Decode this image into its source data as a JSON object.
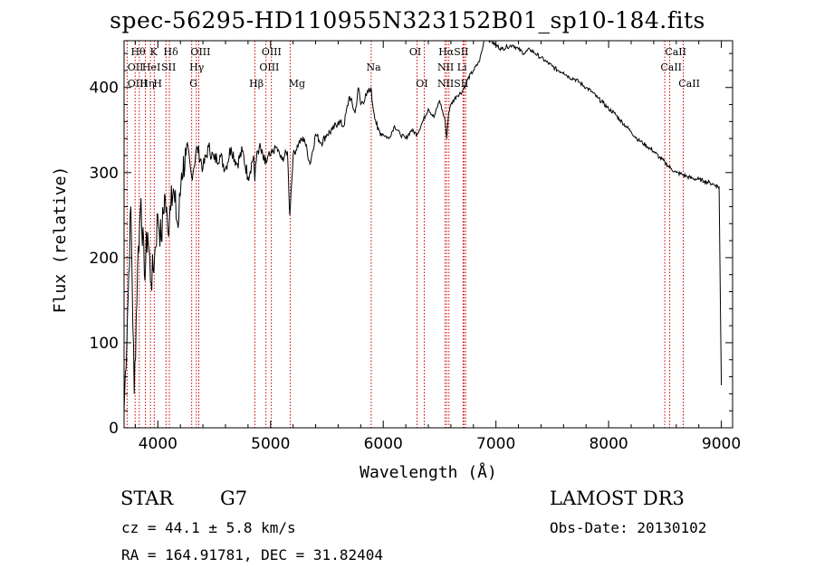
{
  "chart_data": {
    "type": "line",
    "title": "spec-56295-HD110955N323152B01_sp10-184.fits",
    "xlabel": "Wavelength (Å)",
    "ylabel": "Flux (relative)",
    "xlim": [
      3700,
      9100
    ],
    "ylim": [
      0,
      455
    ],
    "xticks": [
      4000,
      5000,
      6000,
      7000,
      8000,
      9000
    ],
    "yticks": [
      0,
      100,
      200,
      300,
      400
    ],
    "series": [
      {
        "name": "flux",
        "x": [
          3700,
          3730,
          3760,
          3790,
          3820,
          3850,
          3880,
          3910,
          3940,
          3970,
          4000,
          4030,
          4060,
          4090,
          4120,
          4150,
          4180,
          4210,
          4250,
          4300,
          4350,
          4400,
          4450,
          4500,
          4550,
          4600,
          4650,
          4700,
          4750,
          4800,
          4850,
          4860,
          4880,
          4900,
          4950,
          5000,
          5050,
          5100,
          5150,
          5170,
          5200,
          5250,
          5300,
          5350,
          5400,
          5450,
          5500,
          5550,
          5600,
          5650,
          5700,
          5750,
          5780,
          5800,
          5850,
          5890,
          5900,
          5950,
          6000,
          6050,
          6100,
          6150,
          6200,
          6250,
          6300,
          6350,
          6400,
          6450,
          6500,
          6550,
          6563,
          6580,
          6600,
          6650,
          6700,
          6750,
          6800,
          6850,
          6880,
          6900,
          6950,
          7000,
          7050,
          7100,
          7150,
          7200,
          7250,
          7300,
          7350,
          7400,
          7450,
          7500,
          7550,
          7600,
          7650,
          7700,
          7750,
          7800,
          7850,
          7900,
          7950,
          8000,
          8050,
          8100,
          8150,
          8200,
          8250,
          8300,
          8350,
          8400,
          8450,
          8500,
          8550,
          8600,
          8650,
          8700,
          8750,
          8800,
          8850,
          8900,
          8950,
          8980,
          9000
        ],
        "y": [
          20,
          130,
          260,
          40,
          190,
          270,
          180,
          230,
          170,
          200,
          250,
          220,
          275,
          230,
          285,
          265,
          235,
          300,
          320,
          295,
          330,
          305,
          330,
          315,
          320,
          305,
          330,
          310,
          325,
          295,
          320,
          290,
          325,
          330,
          310,
          320,
          330,
          315,
          325,
          250,
          320,
          335,
          340,
          310,
          345,
          335,
          345,
          350,
          360,
          355,
          390,
          370,
          400,
          380,
          390,
          400,
          385,
          350,
          345,
          340,
          355,
          345,
          340,
          350,
          345,
          360,
          375,
          365,
          385,
          360,
          340,
          370,
          380,
          390,
          395,
          410,
          420,
          430,
          445,
          460,
          455,
          450,
          445,
          448,
          450,
          445,
          440,
          445,
          440,
          435,
          430,
          425,
          420,
          418,
          412,
          410,
          405,
          400,
          395,
          388,
          382,
          375,
          370,
          362,
          355,
          348,
          340,
          335,
          330,
          325,
          318,
          312,
          305,
          300,
          298,
          295,
          293,
          292,
          290,
          288,
          285,
          283,
          50
        ]
      }
    ],
    "lines": [
      {
        "wl": 3727,
        "top": "OII"
      },
      {
        "wl": 3798,
        "top": "Hθ"
      },
      {
        "wl": 3835,
        "top": "Hη"
      },
      {
        "wl": 3889,
        "top": "HeI"
      },
      {
        "wl": 3934,
        "top": "K"
      },
      {
        "wl": 3968,
        "top": "H"
      },
      {
        "wl": 4072,
        "top": "SII"
      },
      {
        "wl": 4102,
        "top": "Hδ"
      },
      {
        "wl": 4300,
        "top": "G"
      },
      {
        "wl": 4341,
        "top": "Hγ"
      },
      {
        "wl": 4363,
        "top": "OIII"
      },
      {
        "wl": 4861,
        "top": "Hβ"
      },
      {
        "wl": 4959,
        "top": "OIII"
      },
      {
        "wl": 5007,
        "top": "OIII"
      },
      {
        "wl": 5175,
        "top": "Mg"
      },
      {
        "wl": 5893,
        "top": "Na"
      },
      {
        "wl": 6300,
        "top": "OI"
      },
      {
        "wl": 6364,
        "top": "OI"
      },
      {
        "wl": 6548,
        "top": "NII"
      },
      {
        "wl": 6563,
        "top": "Hα"
      },
      {
        "wl": 6583,
        "top": "NII"
      },
      {
        "wl": 6708,
        "top": "Li"
      },
      {
        "wl": 6716,
        "top": "SII"
      },
      {
        "wl": 6731,
        "top": "SII"
      },
      {
        "wl": 8498,
        "top": "CaII"
      },
      {
        "wl": 8542,
        "top": "CaII"
      },
      {
        "wl": 8662,
        "top": "CaII"
      }
    ],
    "line_labels": [
      {
        "text": "Hθ",
        "wl": 3760,
        "row": 0
      },
      {
        "text": "OII",
        "wl": 3730,
        "row": 1
      },
      {
        "text": "OIII",
        "wl": 3730,
        "row": 2
      },
      {
        "text": "K",
        "wl": 3930,
        "row": 0
      },
      {
        "text": "HeI",
        "wl": 3860,
        "row": 1
      },
      {
        "text": "Hη",
        "wl": 3840,
        "row": 2
      },
      {
        "text": "Hδ",
        "wl": 4050,
        "row": 0
      },
      {
        "text": "SII",
        "wl": 4030,
        "row": 1
      },
      {
        "text": "H",
        "wl": 3960,
        "row": 2
      },
      {
        "text": "OIII",
        "wl": 4290,
        "row": 0
      },
      {
        "text": "Hγ",
        "wl": 4280,
        "row": 1
      },
      {
        "text": "G",
        "wl": 4280,
        "row": 2
      },
      {
        "text": "Hβ",
        "wl": 4810,
        "row": 2
      },
      {
        "text": "OIII",
        "wl": 4920,
        "row": 0
      },
      {
        "text": "OIII",
        "wl": 4900,
        "row": 1
      },
      {
        "text": "Mg",
        "wl": 5160,
        "row": 2
      },
      {
        "text": "Na",
        "wl": 5850,
        "row": 1
      },
      {
        "text": "OI",
        "wl": 6230,
        "row": 0
      },
      {
        "text": "OI",
        "wl": 6290,
        "row": 2
      },
      {
        "text": "HαSII",
        "wl": 6490,
        "row": 0
      },
      {
        "text": "NII Li",
        "wl": 6480,
        "row": 1
      },
      {
        "text": "NIISII",
        "wl": 6480,
        "row": 2
      },
      {
        "text": "CaII",
        "wl": 8500,
        "row": 0
      },
      {
        "text": "CaII",
        "wl": 8460,
        "row": 1
      },
      {
        "text": "CaII",
        "wl": 8620,
        "row": 2
      }
    ]
  },
  "info": {
    "object_type": "STAR",
    "subclass": "G7",
    "survey": "LAMOST DR3",
    "cz": "cz = 44.1 ± 5.8 km/s",
    "obs_date": "Obs-Date: 20130102",
    "coords": "RA = 164.91781, DEC =  31.82404"
  },
  "colors": {
    "spectrum": "#000000",
    "line_marker": "#cc0000",
    "axis": "#000000"
  }
}
